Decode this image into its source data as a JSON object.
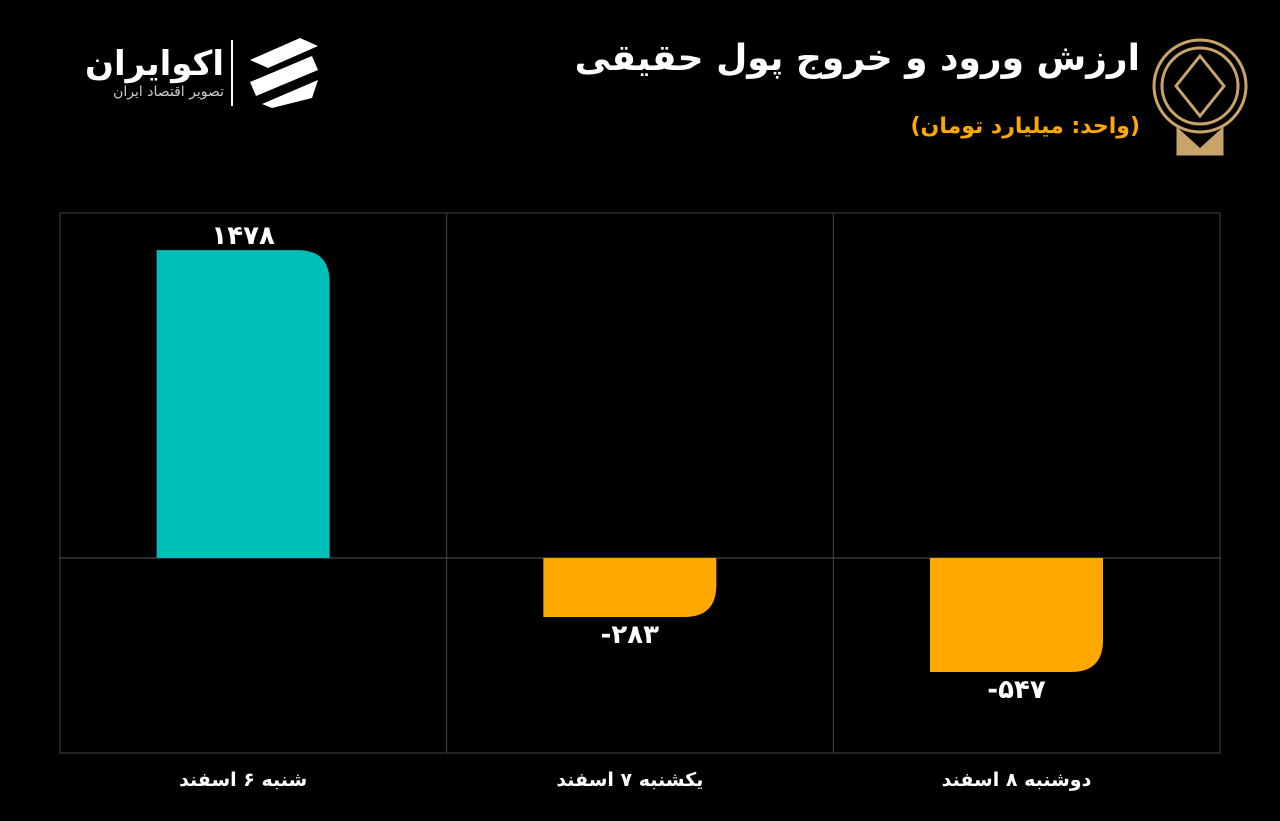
{
  "brand": {
    "name": "اکوایران",
    "tagline": "تصویر اقتصاد ایران"
  },
  "chart_data": {
    "type": "bar",
    "title": "ارزش ورود و خروج پول حقیقی",
    "subtitle": "(واحد: میلیارد تومان)",
    "categories": [
      "شنبه ۶ اسفند",
      "یکشنبه ۷ اسفند",
      "دوشنبه ۸ اسفند"
    ],
    "values": [
      1478,
      -283,
      -547
    ],
    "value_labels": [
      "۱۴۷۸",
      "-۲۸۳",
      "-۵۴۷"
    ],
    "positive_color": "#00bfb8",
    "negative_color": "#ffa800",
    "ylim": [
      -936,
      1656
    ]
  }
}
